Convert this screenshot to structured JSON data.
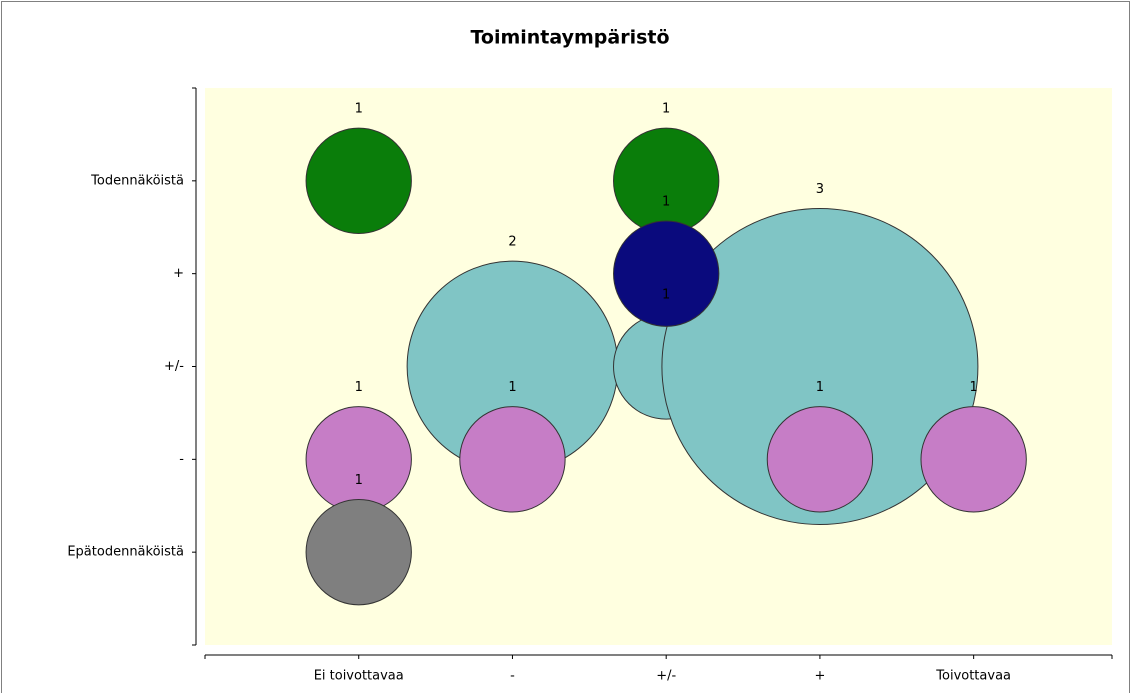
{
  "chart_data": {
    "type": "bubble",
    "title": "Toimintaympäristö",
    "xlim": [
      0,
      5.9
    ],
    "xticks": [
      {
        "value": 1,
        "label": "Ei toivottavaa"
      },
      {
        "value": 2,
        "label": "-"
      },
      {
        "value": 3,
        "label": "+/-"
      },
      {
        "value": 4,
        "label": "+"
      },
      {
        "value": 5,
        "label": "Toivottavaa"
      }
    ],
    "ylim": [
      0,
      6
    ],
    "yticks": [
      {
        "value": 1,
        "label": "Epätodennäköistä"
      },
      {
        "value": 2,
        "label": "-"
      },
      {
        "value": 3,
        "label": "+/-"
      },
      {
        "value": 4,
        "label": "+"
      },
      {
        "value": 5,
        "label": "Todennäköistä"
      }
    ],
    "series": [
      {
        "color": "#80c5c5",
        "x": [
          2,
          3,
          4
        ],
        "y": [
          3,
          3,
          3
        ],
        "sizes": [
          2,
          1,
          3
        ]
      },
      {
        "color": "#0a7d0a",
        "x": [
          1,
          3
        ],
        "y": [
          5,
          5
        ],
        "sizes": [
          1,
          1
        ]
      },
      {
        "color": "#0a0a7d",
        "x": [
          3
        ],
        "y": [
          4
        ],
        "sizes": [
          1
        ]
      },
      {
        "color": "#c67dc6",
        "x": [
          1,
          2,
          4,
          5
        ],
        "y": [
          2,
          2,
          2,
          2
        ],
        "sizes": [
          1,
          1,
          1,
          1
        ]
      },
      {
        "color": "#7f7f7f",
        "x": [
          1
        ],
        "y": [
          1
        ],
        "sizes": [
          1
        ]
      }
    ]
  }
}
